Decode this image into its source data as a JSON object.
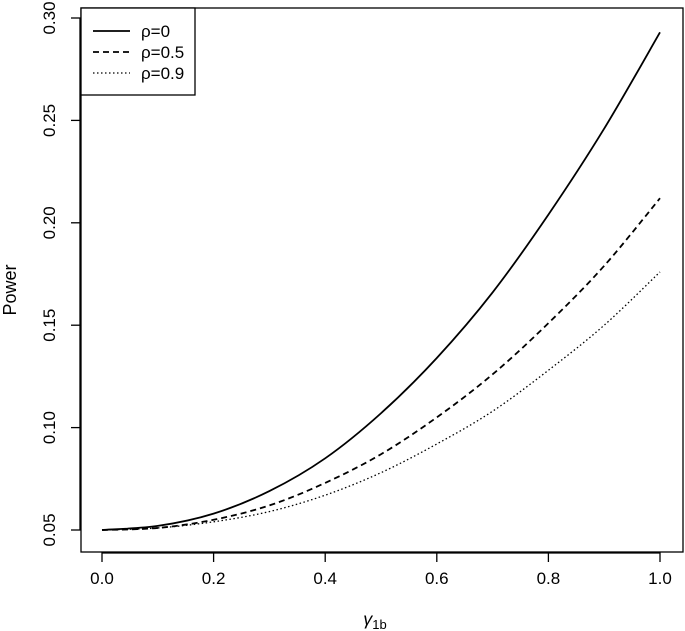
{
  "chart_data": {
    "type": "line",
    "title": "",
    "xlabel": "γ",
    "xlabel_subscript": "1b",
    "ylabel": "Power",
    "xlim": [
      0.0,
      1.0
    ],
    "ylim": [
      0.05,
      0.3
    ],
    "xticks": [
      0.0,
      0.2,
      0.4,
      0.6,
      0.8,
      1.0
    ],
    "xtick_labels": [
      "0.0",
      "0.2",
      "0.4",
      "0.6",
      "0.8",
      "1.0"
    ],
    "yticks": [
      0.05,
      0.1,
      0.15,
      0.2,
      0.25,
      0.3
    ],
    "ytick_labels": [
      "0.05",
      "0.10",
      "0.15",
      "0.20",
      "0.25",
      "0.30"
    ],
    "grid": false,
    "legend_position": "top-left",
    "x": [
      0.0,
      0.1,
      0.2,
      0.3,
      0.4,
      0.5,
      0.6,
      0.7,
      0.8,
      0.9,
      1.0
    ],
    "series": [
      {
        "name": "ρ=0",
        "line_style": "solid",
        "color": "#000000",
        "values": [
          0.05,
          0.052,
          0.058,
          0.069,
          0.085,
          0.107,
          0.134,
          0.166,
          0.204,
          0.246,
          0.293
        ]
      },
      {
        "name": "ρ=0.5",
        "line_style": "dashed",
        "color": "#000000",
        "values": [
          0.05,
          0.051,
          0.055,
          0.062,
          0.073,
          0.087,
          0.105,
          0.126,
          0.151,
          0.179,
          0.212
        ]
      },
      {
        "name": "ρ=0.9",
        "line_style": "dotted",
        "color": "#000000",
        "values": [
          0.05,
          0.051,
          0.054,
          0.059,
          0.067,
          0.078,
          0.092,
          0.108,
          0.128,
          0.15,
          0.176
        ]
      }
    ]
  }
}
